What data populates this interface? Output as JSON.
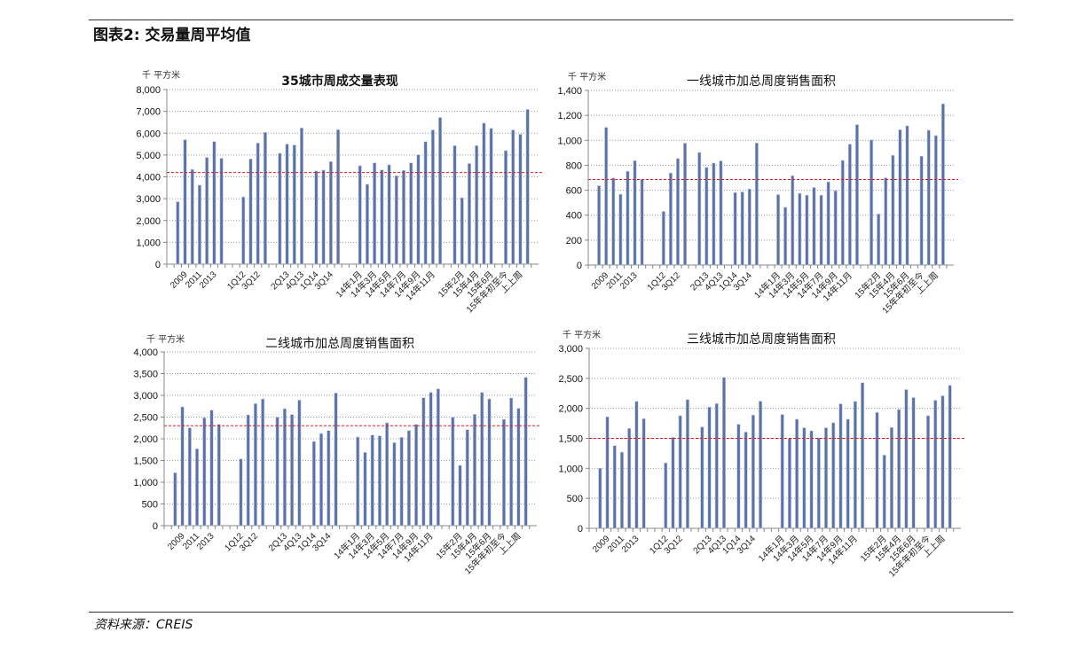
{
  "header": {
    "title": "图表2: 交易量周平均值"
  },
  "footer": {
    "source": "资料来源：CREIS"
  },
  "colors": {
    "bar": "#5b72a8",
    "average_line": "#e8161b",
    "grid": "#9a9a9a"
  },
  "chart_data": [
    {
      "type": "bar",
      "title": "35城市周成交量表现",
      "ylabel": "千 平方米",
      "ylim": [
        0,
        8000
      ],
      "ytick_step": 1000,
      "grid": true,
      "average_line": 4200,
      "categories": [
        "",
        "",
        "2009",
        "",
        "2011",
        "",
        "2013",
        "",
        "",
        "",
        "1Q12",
        "",
        "3Q12",
        "",
        "",
        "",
        "2Q13",
        "",
        "4Q13",
        "",
        "1Q14",
        "",
        "3Q14",
        "",
        "",
        "",
        "14年1月",
        "",
        "14年3月",
        "",
        "14年5月",
        "",
        "14年7月",
        "",
        "14年9月",
        "",
        "14年11月",
        "",
        "",
        "",
        "15年2月",
        "",
        "15年4月",
        "",
        "15年6月",
        "",
        "15年年初至今",
        "",
        "上上周",
        "",
        ""
      ],
      "values": [
        null,
        2860,
        5700,
        4340,
        3620,
        4890,
        5620,
        4850,
        null,
        null,
        3080,
        4820,
        5550,
        6040,
        null,
        5080,
        5500,
        5460,
        6240,
        null,
        4270,
        4310,
        4700,
        6160,
        null,
        null,
        4510,
        3660,
        4640,
        4320,
        4550,
        4050,
        4300,
        4640,
        5010,
        5610,
        6150,
        6720,
        null,
        5430,
        3040,
        4610,
        5430,
        6460,
        6220,
        null,
        5200,
        6150,
        5950,
        7090,
        null
      ]
    },
    {
      "type": "bar",
      "title": "一线城市加总周度销售面积",
      "ylabel": "千 平方米",
      "ylim": [
        0,
        1400
      ],
      "ytick_step": 200,
      "grid": true,
      "average_line": 686,
      "categories": [
        "",
        "",
        "2009",
        "",
        "2011",
        "",
        "2013",
        "",
        "",
        "",
        "1Q12",
        "",
        "3Q12",
        "",
        "",
        "",
        "2Q13",
        "",
        "4Q13",
        "",
        "1Q14",
        "",
        "3Q14",
        "",
        "",
        "",
        "14年1月",
        "",
        "14年3月",
        "",
        "14年5月",
        "",
        "14年7月",
        "",
        "14年9月",
        "",
        "14年11月",
        "",
        "",
        "",
        "15年2月",
        "",
        "15年4月",
        "",
        "15年6月",
        "",
        "15年年初至今",
        "",
        "上上周",
        "",
        ""
      ],
      "values": [
        null,
        636,
        1104,
        698,
        568,
        752,
        837,
        686,
        null,
        null,
        430,
        738,
        854,
        977,
        null,
        903,
        783,
        818,
        835,
        null,
        582,
        586,
        610,
        979,
        null,
        null,
        565,
        463,
        716,
        575,
        560,
        622,
        560,
        667,
        596,
        839,
        969,
        1126,
        null,
        1003,
        409,
        700,
        880,
        1085,
        1116,
        null,
        873,
        1081,
        1038,
        1293,
        null
      ]
    },
    {
      "type": "bar",
      "title": "二线城市加总周度销售面积",
      "ylabel": "千 平方米",
      "ylim": [
        0,
        4000
      ],
      "ytick_step": 500,
      "grid": true,
      "average_line": 2300,
      "categories": [
        "",
        "",
        "2009",
        "",
        "2011",
        "",
        "2013",
        "",
        "",
        "",
        "1Q12",
        "",
        "3Q12",
        "",
        "",
        "",
        "2Q13",
        "",
        "4Q13",
        "",
        "1Q14",
        "",
        "3Q14",
        "",
        "",
        "",
        "14年1月",
        "",
        "14年3月",
        "",
        "14年5月",
        "",
        "14年7月",
        "",
        "14年9月",
        "",
        "14年11月",
        "",
        "",
        "",
        "15年2月",
        "",
        "15年4月",
        "",
        "15年6月",
        "",
        "15年年初至今",
        "",
        "上上周",
        "",
        ""
      ],
      "values": [
        null,
        1218,
        2735,
        2252,
        1769,
        2483,
        2660,
        2333,
        null,
        null,
        1537,
        2551,
        2810,
        2918,
        null,
        2497,
        2694,
        2558,
        2891,
        null,
        1939,
        2122,
        2190,
        3054,
        null,
        null,
        2041,
        1687,
        2088,
        2068,
        2367,
        1912,
        2034,
        2190,
        2333,
        2946,
        3068,
        3150,
        null,
        2497,
        1388,
        2211,
        2565,
        3068,
        2918,
        null,
        2449,
        2939,
        2701,
        3415,
        null
      ]
    },
    {
      "type": "bar",
      "title": "三线城市加总周度销售面积",
      "ylabel": "千 平方米",
      "ylim": [
        0,
        3000
      ],
      "ytick_step": 500,
      "grid": true,
      "average_line": 1500,
      "categories": [
        "",
        "",
        "2009",
        "",
        "2011",
        "",
        "2013",
        "",
        "",
        "",
        "1Q12",
        "",
        "3Q12",
        "",
        "",
        "",
        "2Q13",
        "",
        "4Q13",
        "",
        "1Q14",
        "",
        "3Q14",
        "",
        "",
        "",
        "14年1月",
        "",
        "14年3月",
        "",
        "14年5月",
        "",
        "14年7月",
        "",
        "14年9月",
        "",
        "14年11月",
        "",
        "",
        "",
        "15年2月",
        "",
        "15年4月",
        "",
        "15年6月",
        "",
        "15年年初至今",
        "",
        "上上周",
        "",
        ""
      ],
      "values": [
        null,
        1003,
        1859,
        1379,
        1270,
        1666,
        2116,
        1829,
        null,
        null,
        1092,
        1517,
        1878,
        2145,
        null,
        1690,
        2022,
        2081,
        2516,
        null,
        1735,
        1606,
        1888,
        2120,
        null,
        null,
        1898,
        1498,
        1819,
        1676,
        1626,
        1508,
        1676,
        1760,
        2076,
        1819,
        2116,
        2427,
        null,
        1933,
        1221,
        1681,
        1982,
        2313,
        2180,
        null,
        1878,
        2135,
        2210,
        2383,
        null
      ]
    }
  ]
}
